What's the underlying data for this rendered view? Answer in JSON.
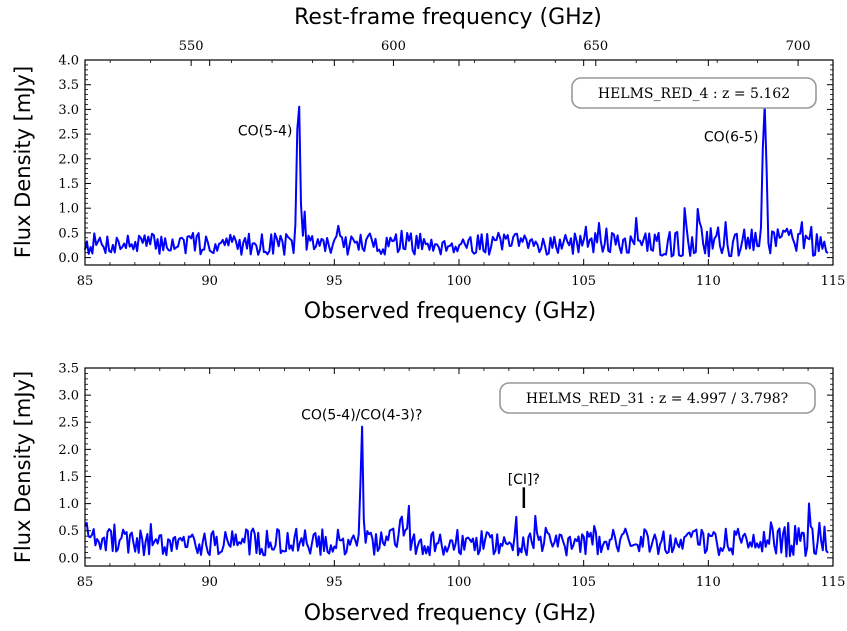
{
  "chart_data": [
    {
      "type": "line",
      "panel": "top",
      "xlabel": "Observed frequency (GHz)",
      "ylabel": "Flux Density [mJy]",
      "top_xlabel": "Rest-frame frequency (GHz)",
      "xlim": [
        85,
        115
      ],
      "ylim": [
        -0.15,
        4.0
      ],
      "x_ticks": [
        "85",
        "90",
        "95",
        "100",
        "105",
        "110",
        "115"
      ],
      "y_ticks": [
        "0.0",
        "0.5",
        "1.0",
        "1.5",
        "2.0",
        "2.5",
        "3.0",
        "3.5",
        "4.0"
      ],
      "top_ticks": [
        "550",
        "600",
        "650",
        "700"
      ],
      "top_tick_values": [
        550,
        600,
        650,
        700
      ],
      "redshift": 5.162,
      "box_label": "HELMS_RED_4 : z = 5.162",
      "annotations": [
        {
          "text": "CO(5-4)",
          "x": 93.56,
          "y": 2.88
        },
        {
          "text": "CO(6-5)",
          "x": 112.25,
          "y": 2.75
        }
      ],
      "series": [
        {
          "color": "#0000ff",
          "noise_seed": 7,
          "x_start": 85.0,
          "x_end": 114.8,
          "n_points": 400,
          "noise_base": 0.3,
          "noise_amp": 0.45,
          "lines": [
            {
              "center": 93.56,
              "sigma": 0.06,
              "peak": 2.88
            },
            {
              "center": 112.25,
              "sigma": 0.07,
              "peak": 2.75
            }
          ],
          "noisy_region": [
            108.0,
            114.5
          ]
        }
      ]
    },
    {
      "type": "line",
      "panel": "bottom",
      "xlabel": "Observed frequency (GHz)",
      "ylabel": "Flux Density [mJy]",
      "xlim": [
        85,
        115
      ],
      "ylim": [
        -0.15,
        3.5
      ],
      "x_ticks": [
        "85",
        "90",
        "95",
        "100",
        "105",
        "110",
        "115"
      ],
      "y_ticks": [
        "0.0",
        "0.5",
        "1.0",
        "1.5",
        "2.0",
        "2.5",
        "3.0",
        "3.5"
      ],
      "box_label": "HELMS_RED_31 : z = 4.997 / 3.798?",
      "annotations": [
        {
          "text": "CO(5-4)/CO(4-3)?",
          "x": 96.1,
          "y": 2.33
        },
        {
          "text": "[CI]?",
          "x": 102.6,
          "y": 1.4
        }
      ],
      "marker": {
        "x": 102.6,
        "y_from": 0.92,
        "y_to": 1.3
      },
      "series": [
        {
          "color": "#0000ff",
          "noise_seed": 19,
          "x_start": 85.0,
          "x_end": 114.8,
          "n_points": 430,
          "noise_base": 0.32,
          "noise_amp": 0.5,
          "lines": [
            {
              "center": 96.1,
              "sigma": 0.05,
              "peak": 2.33
            }
          ],
          "noisy_region": [
            113.0,
            114.8
          ]
        }
      ]
    }
  ]
}
